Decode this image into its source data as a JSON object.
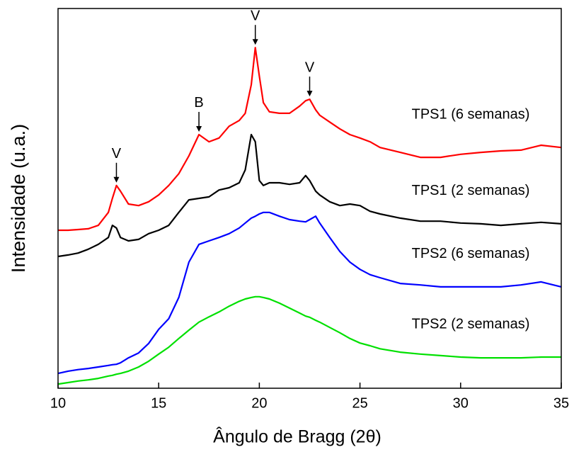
{
  "chart_data": {
    "type": "line",
    "xlabel": "Ângulo de Bragg (2θ)",
    "ylabel": "Intensidade (u.a.)",
    "xlim": [
      10,
      35
    ],
    "xticks": [
      10,
      15,
      20,
      25,
      30,
      35
    ],
    "ylim": [
      0,
      100
    ],
    "x": [
      10,
      10.5,
      11,
      11.5,
      12,
      12.5,
      12.7,
      12.9,
      13.1,
      13.5,
      14,
      14.5,
      15,
      15.5,
      16,
      16.5,
      17,
      17.5,
      18,
      18.5,
      19,
      19.3,
      19.6,
      19.8,
      20,
      20.2,
      20.5,
      21,
      21.5,
      22,
      22.3,
      22.5,
      22.8,
      23,
      23.5,
      24,
      24.5,
      25,
      25.5,
      26,
      27,
      28,
      29,
      30,
      31,
      32,
      33,
      34,
      35
    ],
    "series": [
      {
        "name": "TPS1 (6 semanas)",
        "color": "#ff0000",
        "values": [
          41.6,
          41.6,
          41.8,
          42.0,
          42.9,
          46.3,
          50.0,
          53.4,
          51.9,
          48.5,
          48.1,
          49.1,
          50.9,
          53.4,
          56.5,
          61.2,
          66.8,
          64.9,
          65.9,
          69.0,
          70.5,
          72.4,
          79.9,
          89.7,
          82.2,
          75.2,
          72.8,
          72.4,
          72.4,
          74.3,
          75.7,
          76.1,
          73.3,
          71.9,
          70.1,
          68.3,
          66.8,
          65.9,
          64.9,
          63.4,
          62.1,
          60.8,
          60.8,
          61.6,
          62.1,
          62.5,
          62.7,
          64.0,
          63.4
        ]
      },
      {
        "name": "TPS1 (2 semanas)",
        "color": "#000000",
        "values": [
          34.7,
          35.1,
          35.6,
          36.6,
          37.9,
          39.7,
          42.9,
          42.2,
          39.7,
          38.8,
          39.2,
          40.7,
          41.6,
          42.9,
          46.3,
          49.6,
          50.0,
          50.4,
          52.2,
          52.8,
          54.1,
          57.5,
          66.8,
          64.9,
          54.7,
          53.4,
          54.1,
          54.1,
          53.7,
          54.1,
          56.0,
          54.7,
          51.9,
          50.9,
          49.1,
          48.1,
          48.5,
          48.1,
          46.6,
          45.9,
          44.8,
          44.0,
          44.0,
          43.5,
          43.3,
          42.9,
          43.3,
          43.7,
          43.3
        ]
      },
      {
        "name": "TPS2 (6 semanas)",
        "color": "#0000ff",
        "values": [
          3.9,
          4.5,
          4.9,
          5.2,
          5.6,
          6.0,
          6.2,
          6.3,
          6.7,
          8.0,
          9.3,
          11.8,
          15.5,
          18.3,
          23.9,
          33.2,
          37.9,
          38.8,
          39.7,
          40.7,
          42.2,
          43.5,
          44.8,
          45.3,
          45.9,
          46.3,
          46.3,
          45.3,
          44.4,
          44.0,
          43.8,
          44.4,
          45.3,
          43.5,
          39.7,
          36.0,
          33.2,
          31.3,
          29.9,
          29.1,
          27.6,
          27.2,
          26.7,
          26.7,
          26.7,
          26.7,
          27.2,
          28.0,
          26.7
        ]
      },
      {
        "name": "TPS2 (2 semanas)",
        "color": "#00e000",
        "values": [
          1.1,
          1.5,
          1.9,
          2.2,
          2.6,
          3.2,
          3.4,
          3.7,
          3.9,
          4.5,
          5.6,
          7.1,
          9.0,
          10.8,
          13.1,
          15.3,
          17.4,
          18.8,
          20.1,
          21.6,
          22.9,
          23.5,
          23.9,
          24.1,
          24.1,
          23.9,
          23.5,
          22.4,
          21.1,
          19.8,
          19.0,
          18.7,
          17.9,
          17.4,
          16.0,
          14.6,
          13.1,
          11.9,
          11.2,
          10.4,
          9.5,
          9.0,
          8.6,
          8.2,
          8.0,
          8.0,
          8.0,
          8.2,
          8.2
        ]
      }
    ],
    "annotations": [
      {
        "text": "V",
        "x": 12.9
      },
      {
        "text": "B",
        "x": 17
      },
      {
        "text": "V",
        "x": 19.8
      },
      {
        "text": "V",
        "x": 22.5
      }
    ]
  }
}
